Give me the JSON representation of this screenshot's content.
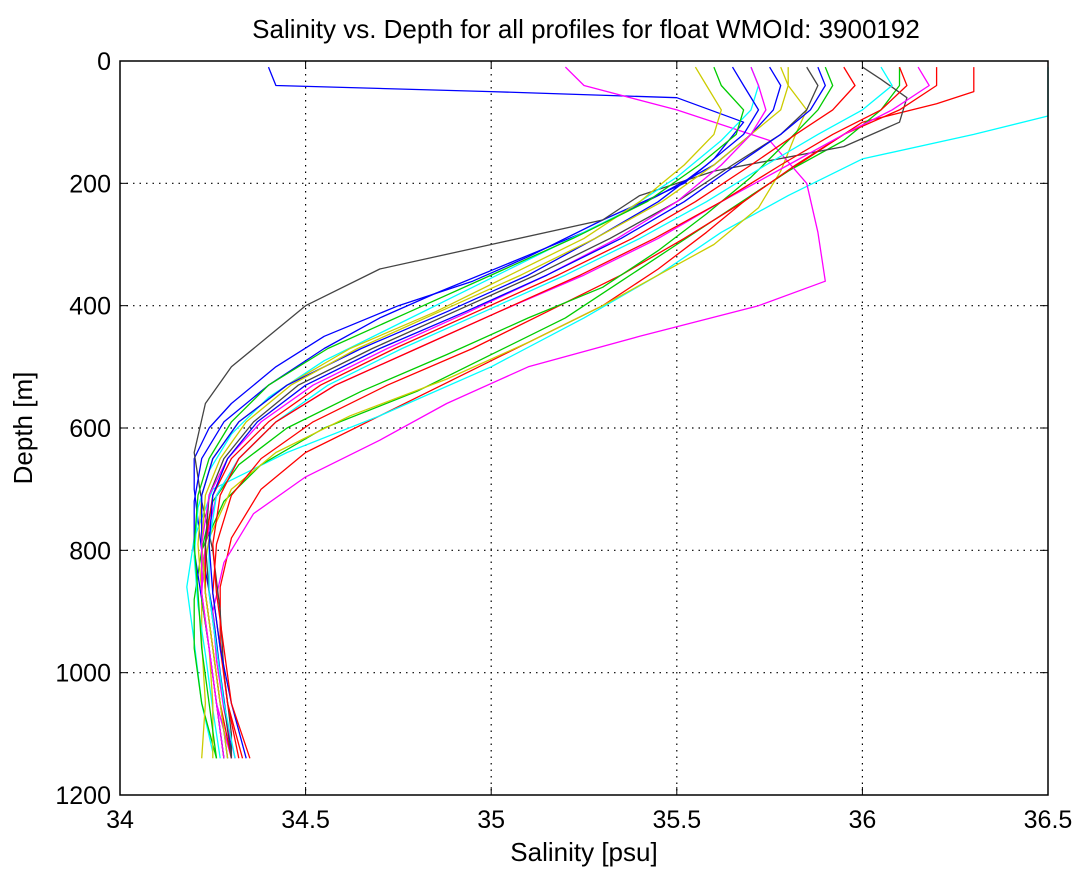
{
  "chart_data": {
    "type": "line",
    "title": "Salinity vs. Depth for all profiles for float WMOId: 3900192",
    "xlabel": "Salinity [psu]",
    "ylabel": "Depth [m]",
    "xlim": [
      34,
      36.5
    ],
    "ylim": [
      0,
      1200
    ],
    "y_reversed": true,
    "grid": true,
    "x_ticks": [
      34,
      34.5,
      35,
      35.5,
      36,
      36.5
    ],
    "x_tick_labels": [
      "34",
      "34.5",
      "35",
      "35.5",
      "36",
      "36.5"
    ],
    "y_ticks": [
      0,
      200,
      400,
      600,
      800,
      1000,
      1200
    ],
    "y_tick_labels": [
      "0",
      "200",
      "400",
      "600",
      "800",
      "1000",
      "1200"
    ],
    "series": [
      {
        "color": "#0000ff",
        "depth": [
          10,
          40,
          50,
          60,
          100,
          160,
          200,
          260,
          320,
          360,
          400,
          450,
          500,
          560,
          600,
          650,
          700,
          800,
          900,
          1000,
          1130
        ],
        "salinity": [
          34.4,
          34.42,
          35.0,
          35.5,
          35.68,
          35.6,
          35.52,
          35.3,
          35.1,
          34.95,
          34.75,
          34.55,
          34.42,
          34.3,
          34.24,
          34.2,
          34.2,
          34.22,
          34.25,
          34.27,
          34.3
        ]
      },
      {
        "color": "#ff0000",
        "depth": [
          10,
          30,
          50,
          70,
          100,
          140,
          180,
          220,
          280,
          340,
          400,
          460,
          520,
          580,
          640,
          700,
          780,
          860,
          950,
          1050,
          1140
        ],
        "salinity": [
          36.3,
          36.3,
          36.3,
          36.2,
          36.0,
          35.9,
          35.8,
          35.7,
          35.58,
          35.45,
          35.3,
          35.1,
          34.9,
          34.7,
          34.5,
          34.38,
          34.3,
          34.27,
          34.27,
          34.29,
          34.33
        ]
      },
      {
        "color": "#00ffff",
        "depth": [
          10,
          40,
          90,
          120,
          160,
          220,
          280,
          350,
          420,
          500,
          580,
          640,
          700,
          780,
          860,
          950,
          1050,
          1130
        ],
        "salinity": [
          36.5,
          36.5,
          36.5,
          36.3,
          36.0,
          35.8,
          35.62,
          35.45,
          35.25,
          35.0,
          34.7,
          34.45,
          34.25,
          34.2,
          34.18,
          34.2,
          34.22,
          34.25
        ]
      },
      {
        "color": "#00cc00",
        "depth": [
          10,
          40,
          80,
          130,
          180,
          240,
          300,
          360,
          420,
          480,
          540,
          600,
          660,
          720,
          800,
          880,
          960,
          1050,
          1140
        ],
        "salinity": [
          36.1,
          36.1,
          36.05,
          35.95,
          35.8,
          35.65,
          35.5,
          35.35,
          35.2,
          35.0,
          34.8,
          34.55,
          34.38,
          34.28,
          34.22,
          34.2,
          34.2,
          34.22,
          34.26
        ]
      },
      {
        "color": "#cccc00",
        "depth": [
          10,
          40,
          80,
          120,
          180,
          240,
          300,
          350,
          400,
          460,
          520,
          580,
          640,
          700,
          780,
          860,
          950,
          1050,
          1140
        ],
        "salinity": [
          35.8,
          35.8,
          35.85,
          35.82,
          35.78,
          35.72,
          35.6,
          35.45,
          35.3,
          35.1,
          34.88,
          34.62,
          34.42,
          34.3,
          34.24,
          34.22,
          34.22,
          34.23,
          34.22
        ]
      },
      {
        "color": "#ff00ff",
        "depth": [
          10,
          40,
          80,
          130,
          200,
          280,
          360,
          400,
          450,
          500,
          560,
          620,
          680,
          740,
          820,
          900,
          980,
          1060,
          1140
        ],
        "salinity": [
          35.2,
          35.25,
          35.5,
          35.75,
          35.85,
          35.88,
          35.9,
          35.72,
          35.4,
          35.1,
          34.88,
          34.7,
          34.5,
          34.36,
          34.28,
          34.25,
          34.26,
          34.28,
          34.31
        ]
      },
      {
        "color": "#444444",
        "depth": [
          10,
          30,
          60,
          100,
          140,
          180,
          220,
          260,
          300,
          340,
          400,
          450,
          500,
          560,
          640,
          720,
          800,
          900,
          1000,
          1100,
          1140
        ],
        "salinity": [
          36.0,
          36.05,
          36.12,
          36.1,
          35.95,
          35.6,
          35.4,
          35.3,
          35.0,
          34.7,
          34.5,
          34.4,
          34.3,
          34.23,
          34.2,
          34.22,
          34.25,
          34.27,
          34.28,
          34.3,
          34.3
        ]
      },
      {
        "color": "#0000ff",
        "depth": [
          10,
          40,
          80,
          120,
          170,
          220,
          280,
          330,
          380,
          420,
          470,
          530,
          590,
          650,
          720,
          800,
          880,
          960,
          1050,
          1140
        ],
        "salinity": [
          35.75,
          35.78,
          35.76,
          35.7,
          35.6,
          35.45,
          35.25,
          35.05,
          34.85,
          34.7,
          34.55,
          34.4,
          34.28,
          34.22,
          34.2,
          34.2,
          34.22,
          34.24,
          34.26,
          34.28
        ]
      },
      {
        "color": "#ff0000",
        "depth": [
          10,
          40,
          80,
          120,
          170,
          230,
          290,
          350,
          410,
          470,
          530,
          590,
          650,
          710,
          790,
          870,
          960,
          1050,
          1140
        ],
        "salinity": [
          36.2,
          36.2,
          36.1,
          35.95,
          35.82,
          35.68,
          35.52,
          35.35,
          35.15,
          34.95,
          34.72,
          34.52,
          34.38,
          34.3,
          34.26,
          34.25,
          34.27,
          34.29,
          34.32
        ]
      },
      {
        "color": "#00ffff",
        "depth": [
          10,
          40,
          80,
          130,
          190,
          250,
          310,
          370,
          430,
          490,
          550,
          610,
          670,
          730,
          810,
          890,
          970,
          1060,
          1140
        ],
        "salinity": [
          35.7,
          35.72,
          35.7,
          35.62,
          35.5,
          35.35,
          35.15,
          34.95,
          34.75,
          34.55,
          34.4,
          34.3,
          34.24,
          34.21,
          34.2,
          34.21,
          34.23,
          34.25,
          34.27
        ]
      },
      {
        "color": "#00cc00",
        "depth": [
          10,
          40,
          80,
          130,
          190,
          250,
          310,
          370,
          420,
          480,
          540,
          600,
          660,
          720,
          800,
          880,
          960,
          1050,
          1140
        ],
        "salinity": [
          35.9,
          35.92,
          35.88,
          35.8,
          35.7,
          35.58,
          35.45,
          35.3,
          35.1,
          34.88,
          34.65,
          34.45,
          34.32,
          34.25,
          34.22,
          34.22,
          34.24,
          34.26,
          34.28
        ]
      },
      {
        "color": "#cccc00",
        "depth": [
          10,
          40,
          80,
          120,
          170,
          230,
          290,
          350,
          410,
          470,
          530,
          590,
          650,
          710,
          790,
          870,
          960,
          1050,
          1140
        ],
        "salinity": [
          35.55,
          35.58,
          35.62,
          35.6,
          35.52,
          35.4,
          35.25,
          35.05,
          34.85,
          34.62,
          34.45,
          34.32,
          34.25,
          34.22,
          34.21,
          34.22,
          34.24,
          34.25,
          34.25
        ]
      },
      {
        "color": "#ff00ff",
        "depth": [
          10,
          40,
          80,
          120,
          170,
          230,
          290,
          350,
          410,
          470,
          530,
          590,
          650,
          710,
          790,
          870,
          960,
          1050,
          1140
        ],
        "salinity": [
          36.15,
          36.18,
          36.08,
          35.95,
          35.8,
          35.62,
          35.45,
          35.25,
          35.02,
          34.8,
          34.58,
          34.42,
          34.32,
          34.26,
          34.23,
          34.22,
          34.24,
          34.26,
          34.3
        ]
      },
      {
        "color": "#0000ff",
        "depth": [
          10,
          40,
          80,
          120,
          170,
          230,
          290,
          350,
          410,
          470,
          530,
          590,
          650,
          710,
          790,
          870,
          960,
          1050,
          1140
        ],
        "salinity": [
          35.65,
          35.68,
          35.72,
          35.68,
          35.58,
          35.45,
          35.28,
          35.1,
          34.88,
          34.65,
          34.45,
          34.32,
          34.25,
          34.22,
          34.22,
          34.23,
          34.25,
          34.27,
          34.29
        ]
      },
      {
        "color": "#ff0000",
        "depth": [
          10,
          40,
          80,
          120,
          170,
          230,
          290,
          350,
          410,
          470,
          530,
          590,
          650,
          710,
          790,
          870,
          960,
          1050,
          1140
        ],
        "salinity": [
          35.95,
          35.98,
          35.92,
          35.82,
          35.7,
          35.55,
          35.38,
          35.18,
          34.96,
          34.74,
          34.54,
          34.4,
          34.3,
          34.25,
          34.23,
          34.23,
          34.25,
          34.27,
          34.3
        ]
      },
      {
        "color": "#444444",
        "depth": [
          10,
          40,
          80,
          120,
          170,
          230,
          290,
          350,
          410,
          470,
          530,
          590,
          650,
          710,
          790,
          870,
          960,
          1050,
          1140
        ],
        "salinity": [
          35.85,
          35.88,
          35.85,
          35.78,
          35.65,
          35.5,
          35.32,
          35.12,
          34.9,
          34.68,
          34.48,
          34.36,
          34.28,
          34.24,
          34.23,
          34.24,
          34.26,
          34.28,
          34.3
        ]
      },
      {
        "color": "#00cc00",
        "depth": [
          10,
          40,
          80,
          120,
          170,
          230,
          290,
          350,
          410,
          470,
          530,
          590,
          650,
          710,
          790,
          870,
          960,
          1050,
          1140
        ],
        "salinity": [
          35.6,
          35.62,
          35.68,
          35.66,
          35.56,
          35.42,
          35.22,
          35.0,
          34.78,
          34.56,
          34.4,
          34.3,
          34.24,
          34.21,
          34.2,
          34.21,
          34.22,
          34.24,
          34.26
        ]
      },
      {
        "color": "#00ffff",
        "depth": [
          10,
          40,
          80,
          120,
          170,
          230,
          290,
          350,
          410,
          470,
          530,
          590,
          650,
          710,
          790,
          870,
          960,
          1050,
          1140
        ],
        "salinity": [
          36.05,
          36.08,
          36.0,
          35.88,
          35.74,
          35.58,
          35.4,
          35.2,
          34.98,
          34.76,
          34.56,
          34.42,
          34.32,
          34.26,
          34.24,
          34.24,
          34.26,
          34.28,
          34.31
        ]
      },
      {
        "color": "#cccc00",
        "depth": [
          10,
          40,
          80,
          120,
          170,
          230,
          290,
          350,
          410,
          470,
          530,
          590,
          650,
          710,
          790,
          870,
          960,
          1050,
          1140
        ],
        "salinity": [
          35.78,
          35.8,
          35.78,
          35.7,
          35.6,
          35.46,
          35.28,
          35.08,
          34.86,
          34.64,
          34.46,
          34.34,
          34.27,
          34.23,
          34.22,
          34.23,
          34.25,
          34.27,
          34.29
        ]
      },
      {
        "color": "#ff00ff",
        "depth": [
          10,
          40,
          80,
          120,
          170,
          230,
          290,
          350,
          410,
          470,
          530,
          590,
          650,
          710,
          790,
          870,
          960,
          1050,
          1140
        ],
        "salinity": [
          35.7,
          35.72,
          35.74,
          35.7,
          35.62,
          35.5,
          35.34,
          35.15,
          34.94,
          34.72,
          34.52,
          34.38,
          34.29,
          34.24,
          34.22,
          34.22,
          34.24,
          34.26,
          34.28
        ]
      },
      {
        "color": "#0000ff",
        "depth": [
          10,
          40,
          80,
          120,
          170,
          230,
          290,
          350,
          410,
          470,
          530,
          590,
          650,
          710,
          790,
          870,
          960,
          1050,
          1140
        ],
        "salinity": [
          35.88,
          35.9,
          35.86,
          35.78,
          35.66,
          35.52,
          35.35,
          35.15,
          34.93,
          34.7,
          34.5,
          34.37,
          34.29,
          34.25,
          34.24,
          34.25,
          34.27,
          34.3,
          34.34
        ]
      },
      {
        "color": "#ff0000",
        "depth": [
          10,
          40,
          80,
          120,
          170,
          230,
          290,
          350,
          410,
          470,
          530,
          590,
          650,
          710,
          790,
          870,
          960,
          1050,
          1140
        ],
        "salinity": [
          36.1,
          36.12,
          36.05,
          35.92,
          35.78,
          35.62,
          35.44,
          35.24,
          35.02,
          34.8,
          34.58,
          34.42,
          34.32,
          34.27,
          34.25,
          34.26,
          34.28,
          34.3,
          34.35
        ]
      }
    ]
  }
}
